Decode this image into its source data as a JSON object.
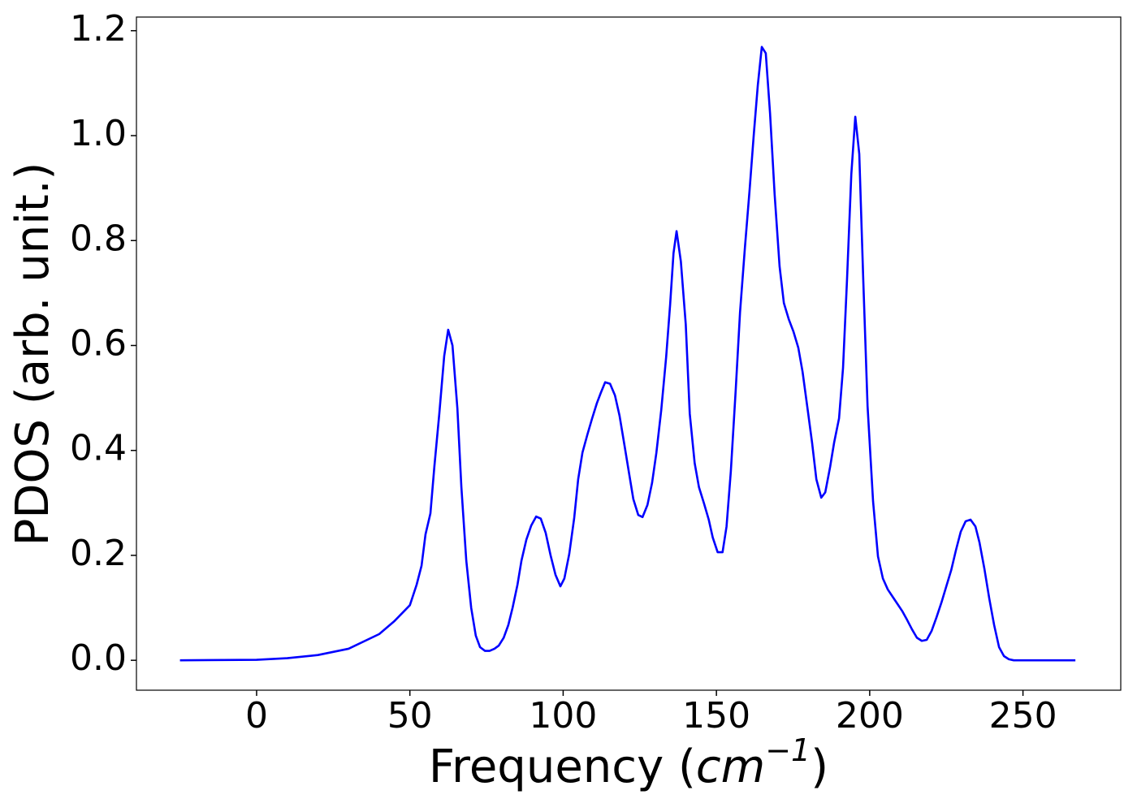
{
  "chart_data": {
    "type": "line",
    "xlabel": [
      "Frequency (",
      "cm",
      "−1",
      ")"
    ],
    "ylabel": "PDOS (arb. unit.)",
    "xlim": [
      -39.2,
      281.9
    ],
    "ylim": [
      -0.057,
      1.226
    ],
    "xticks": [
      0,
      50,
      100,
      150,
      200,
      250
    ],
    "yticks": [
      {
        "value": 0,
        "label": "0.0"
      },
      {
        "value": 0.2,
        "label": "0.2"
      },
      {
        "value": 0.4,
        "label": "0.4"
      },
      {
        "value": 0.6,
        "label": "0.6"
      },
      {
        "value": 0.8,
        "label": "0.8"
      },
      {
        "value": 1.0,
        "label": "1.0"
      },
      {
        "value": 1.2,
        "label": "1.2"
      }
    ],
    "series": [
      {
        "name": "PDOS",
        "color": "#0000ff",
        "x": [
          -25,
          0,
          10,
          20,
          30,
          40,
          45,
          50,
          52.2,
          53.8,
          55.1,
          56.7,
          58.0,
          59.6,
          61.2,
          62.5,
          63.9,
          65.5,
          66.8,
          68.4,
          70.0,
          71.5,
          72.9,
          74.5,
          76.0,
          77.6,
          79.0,
          80.6,
          82.1,
          83.5,
          85.1,
          86.4,
          88.0,
          89.6,
          91.2,
          92.7,
          94.3,
          95.9,
          97.5,
          99.1,
          100.4,
          102.0,
          103.6,
          104.9,
          106.3,
          107.9,
          109.4,
          111.0,
          112.3,
          113.7,
          115.3,
          116.9,
          118.4,
          120.0,
          121.6,
          122.9,
          124.5,
          125.9,
          127.5,
          129.0,
          130.4,
          132.0,
          133.6,
          134.9,
          136.0,
          137.0,
          138.4,
          140.0,
          141.3,
          142.9,
          144.3,
          145.9,
          147.5,
          148.8,
          150.4,
          152.0,
          153.3,
          154.7,
          156.3,
          157.7,
          159.3,
          160.8,
          162.2,
          163.5,
          164.8,
          166.1,
          167.5,
          169.0,
          170.6,
          172.0,
          173.6,
          175.1,
          176.7,
          178.1,
          179.6,
          181.2,
          182.6,
          184.2,
          185.5,
          187.1,
          188.4,
          190.0,
          191.3,
          192.6,
          194.0,
          195.3,
          196.6,
          197.9,
          199.3,
          201.1,
          202.7,
          204.3,
          205.9,
          207.5,
          209.1,
          210.7,
          212.2,
          213.8,
          215.4,
          217.0,
          218.6,
          220.2,
          221.8,
          223.4,
          225.0,
          226.6,
          228.1,
          229.7,
          231.3,
          232.9,
          234.5,
          235.8,
          237.4,
          239.0,
          240.6,
          242.2,
          243.8,
          245.4,
          247.0,
          267.1
        ],
        "values": [
          0,
          0.001,
          0.004,
          0.01,
          0.022,
          0.05,
          0.075,
          0.105,
          0.144,
          0.18,
          0.24,
          0.28,
          0.37,
          0.47,
          0.58,
          0.63,
          0.6,
          0.48,
          0.33,
          0.19,
          0.1,
          0.047,
          0.025,
          0.018,
          0.018,
          0.022,
          0.028,
          0.043,
          0.067,
          0.1,
          0.144,
          0.19,
          0.23,
          0.257,
          0.274,
          0.27,
          0.243,
          0.2,
          0.163,
          0.141,
          0.156,
          0.203,
          0.271,
          0.345,
          0.396,
          0.43,
          0.46,
          0.49,
          0.51,
          0.53,
          0.527,
          0.505,
          0.466,
          0.41,
          0.353,
          0.307,
          0.277,
          0.273,
          0.296,
          0.338,
          0.395,
          0.477,
          0.578,
          0.678,
          0.776,
          0.818,
          0.76,
          0.64,
          0.47,
          0.376,
          0.33,
          0.3,
          0.268,
          0.234,
          0.206,
          0.206,
          0.255,
          0.36,
          0.516,
          0.663,
          0.787,
          0.895,
          1.003,
          1.096,
          1.169,
          1.157,
          1.042,
          0.887,
          0.751,
          0.681,
          0.65,
          0.627,
          0.596,
          0.55,
          0.485,
          0.415,
          0.345,
          0.31,
          0.32,
          0.369,
          0.415,
          0.461,
          0.557,
          0.725,
          0.926,
          1.036,
          0.965,
          0.725,
          0.485,
          0.303,
          0.198,
          0.156,
          0.135,
          0.121,
          0.107,
          0.093,
          0.077,
          0.059,
          0.043,
          0.037,
          0.039,
          0.056,
          0.082,
          0.11,
          0.141,
          0.172,
          0.209,
          0.245,
          0.265,
          0.268,
          0.255,
          0.225,
          0.175,
          0.118,
          0.067,
          0.025,
          0.008,
          0.002,
          0,
          0
        ]
      }
    ]
  }
}
